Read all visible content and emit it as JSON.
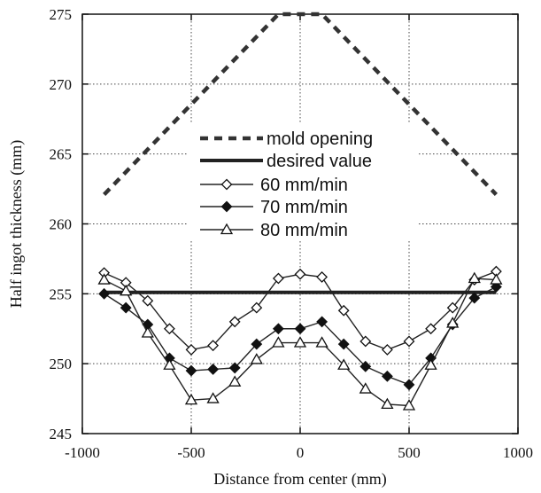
{
  "chart_data": {
    "type": "line",
    "xlabel": "Distance from center (mm)",
    "ylabel": "Half ingot thickness (mm)",
    "xlim": [
      -1000,
      1000
    ],
    "ylim": [
      245,
      275
    ],
    "xticks": [
      -1000,
      -500,
      0,
      500,
      1000
    ],
    "yticks": [
      245,
      250,
      255,
      260,
      265,
      270,
      275
    ],
    "grid": true,
    "legend_position": "center",
    "series": [
      {
        "name": "mold opening",
        "style": "dashed",
        "color": "#333333",
        "marker": "none",
        "x": [
          -900,
          -100,
          100,
          900
        ],
        "y": [
          262.1,
          275,
          275,
          262.1
        ]
      },
      {
        "name": "desired value",
        "style": "solid-thick",
        "color": "#222222",
        "marker": "none",
        "x": [
          -900,
          900
        ],
        "y": [
          255.1,
          255.1
        ]
      },
      {
        "name": "60 mm/min",
        "style": "solid",
        "color": "#222222",
        "marker": "diamond-open",
        "x": [
          -900,
          -800,
          -700,
          -600,
          -500,
          -400,
          -300,
          -200,
          -100,
          0,
          100,
          200,
          300,
          400,
          500,
          600,
          700,
          800,
          900
        ],
        "y": [
          256.5,
          255.8,
          254.5,
          252.5,
          251.0,
          251.3,
          253.0,
          254.0,
          256.1,
          256.4,
          256.2,
          253.8,
          251.6,
          251.0,
          251.6,
          252.5,
          254.0,
          256.0,
          256.6
        ]
      },
      {
        "name": "70 mm/min",
        "style": "solid",
        "color": "#222222",
        "marker": "diamond-filled",
        "x": [
          -900,
          -800,
          -700,
          -600,
          -500,
          -400,
          -300,
          -200,
          -100,
          0,
          100,
          200,
          300,
          400,
          500,
          600,
          700,
          800,
          900
        ],
        "y": [
          255.0,
          254.0,
          252.8,
          250.4,
          249.5,
          249.6,
          249.7,
          251.4,
          252.5,
          252.5,
          253.0,
          251.4,
          249.8,
          249.1,
          248.5,
          250.4,
          252.8,
          254.7,
          255.5
        ]
      },
      {
        "name": "80 mm/min",
        "style": "solid",
        "color": "#222222",
        "marker": "triangle-open",
        "x": [
          -900,
          -800,
          -700,
          -600,
          -500,
          -400,
          -300,
          -200,
          -100,
          0,
          100,
          200,
          300,
          400,
          500,
          600,
          700,
          800,
          900
        ],
        "y": [
          256.0,
          255.2,
          252.2,
          249.9,
          247.4,
          247.5,
          248.7,
          250.3,
          251.5,
          251.5,
          251.5,
          249.9,
          248.2,
          247.1,
          247.0,
          249.9,
          252.9,
          256.1,
          256.0
        ]
      }
    ]
  }
}
